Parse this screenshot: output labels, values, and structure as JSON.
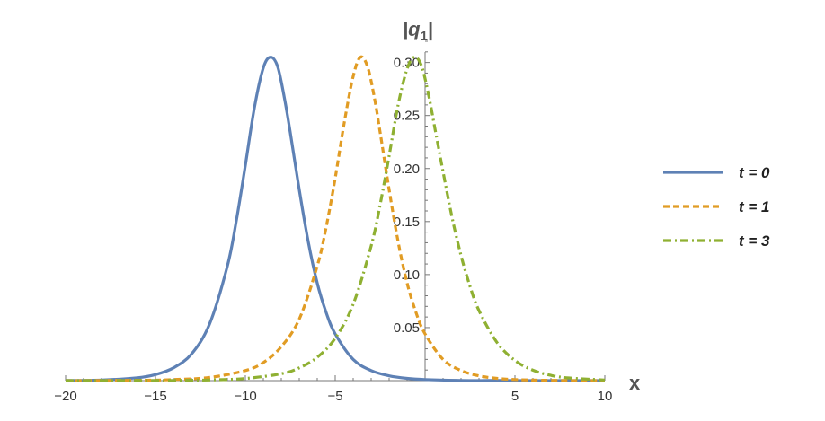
{
  "chart_data": {
    "type": "line",
    "xlabel": "x",
    "ylabel_base": "|q",
    "ylabel_sub": "1",
    "ylabel_end": "|",
    "xlim": [
      -20,
      10
    ],
    "ylim": [
      0,
      0.32
    ],
    "x_ticks": [
      -20,
      -15,
      -10,
      -5,
      5,
      10
    ],
    "x_tick_labels": [
      "−20",
      "−15",
      "−10",
      "−5",
      "5",
      "10"
    ],
    "y_ticks": [
      0.05,
      0.1,
      0.15,
      0.2,
      0.25,
      0.3
    ],
    "y_tick_labels": [
      "0.05",
      "0.10",
      "0.15",
      "0.20",
      "0.25",
      "0.30"
    ],
    "legend_position": "right",
    "series": [
      {
        "name": "t = 0",
        "color": "#5E81B5",
        "style": "solid",
        "x": [
          -20,
          -18,
          -16,
          -15,
          -14,
          -13,
          -12,
          -11,
          -10.5,
          -10,
          -9.5,
          -9,
          -8.6,
          -8.2,
          -7.8,
          -7.5,
          -7,
          -6.5,
          -6,
          -5.5,
          -5,
          -4,
          -3,
          -2,
          -1,
          0,
          2,
          4,
          6,
          8,
          10
        ],
        "y": [
          0.0001,
          0.0006,
          0.0027,
          0.0057,
          0.012,
          0.025,
          0.053,
          0.108,
          0.151,
          0.203,
          0.257,
          0.295,
          0.305,
          0.296,
          0.264,
          0.234,
          0.18,
          0.131,
          0.092,
          0.064,
          0.044,
          0.02,
          0.0095,
          0.0045,
          0.0021,
          0.001,
          0.0002,
          5e-05,
          1e-05,
          0,
          0
        ]
      },
      {
        "name": "t = 1",
        "color": "#E19C24",
        "style": "dashed",
        "x": [
          -20,
          -16,
          -14,
          -12,
          -10,
          -9,
          -8,
          -7,
          -6,
          -5.5,
          -5,
          -4.5,
          -4,
          -3.6,
          -3.2,
          -2.8,
          -2.5,
          -2,
          -1.5,
          -1,
          -0.5,
          0,
          1,
          2,
          3,
          4,
          5,
          6,
          8,
          10
        ],
        "y": [
          4e-05,
          0.0003,
          0.001,
          0.003,
          0.0095,
          0.017,
          0.032,
          0.058,
          0.108,
          0.145,
          0.191,
          0.243,
          0.287,
          0.305,
          0.296,
          0.265,
          0.234,
          0.18,
          0.131,
          0.092,
          0.064,
          0.044,
          0.02,
          0.0095,
          0.0045,
          0.0021,
          0.001,
          0.0005,
          0.0001,
          0
        ]
      },
      {
        "name": "t = 3",
        "color": "#8FB032",
        "style": "dashdot",
        "x": [
          -20,
          -16,
          -14,
          -12,
          -10,
          -8,
          -7,
          -6,
          -5,
          -4,
          -3,
          -2.5,
          -2,
          -1.5,
          -1,
          -0.6,
          -0.2,
          0.2,
          0.6,
          1,
          1.5,
          2,
          2.5,
          3,
          4,
          5,
          6,
          7,
          8,
          10
        ],
        "y": [
          0,
          5e-05,
          0.0002,
          0.0006,
          0.002,
          0.0065,
          0.012,
          0.022,
          0.04,
          0.072,
          0.127,
          0.166,
          0.212,
          0.26,
          0.294,
          0.305,
          0.297,
          0.269,
          0.233,
          0.197,
          0.154,
          0.118,
          0.089,
          0.066,
          0.036,
          0.019,
          0.0098,
          0.005,
          0.0025,
          0.0006
        ]
      }
    ]
  }
}
